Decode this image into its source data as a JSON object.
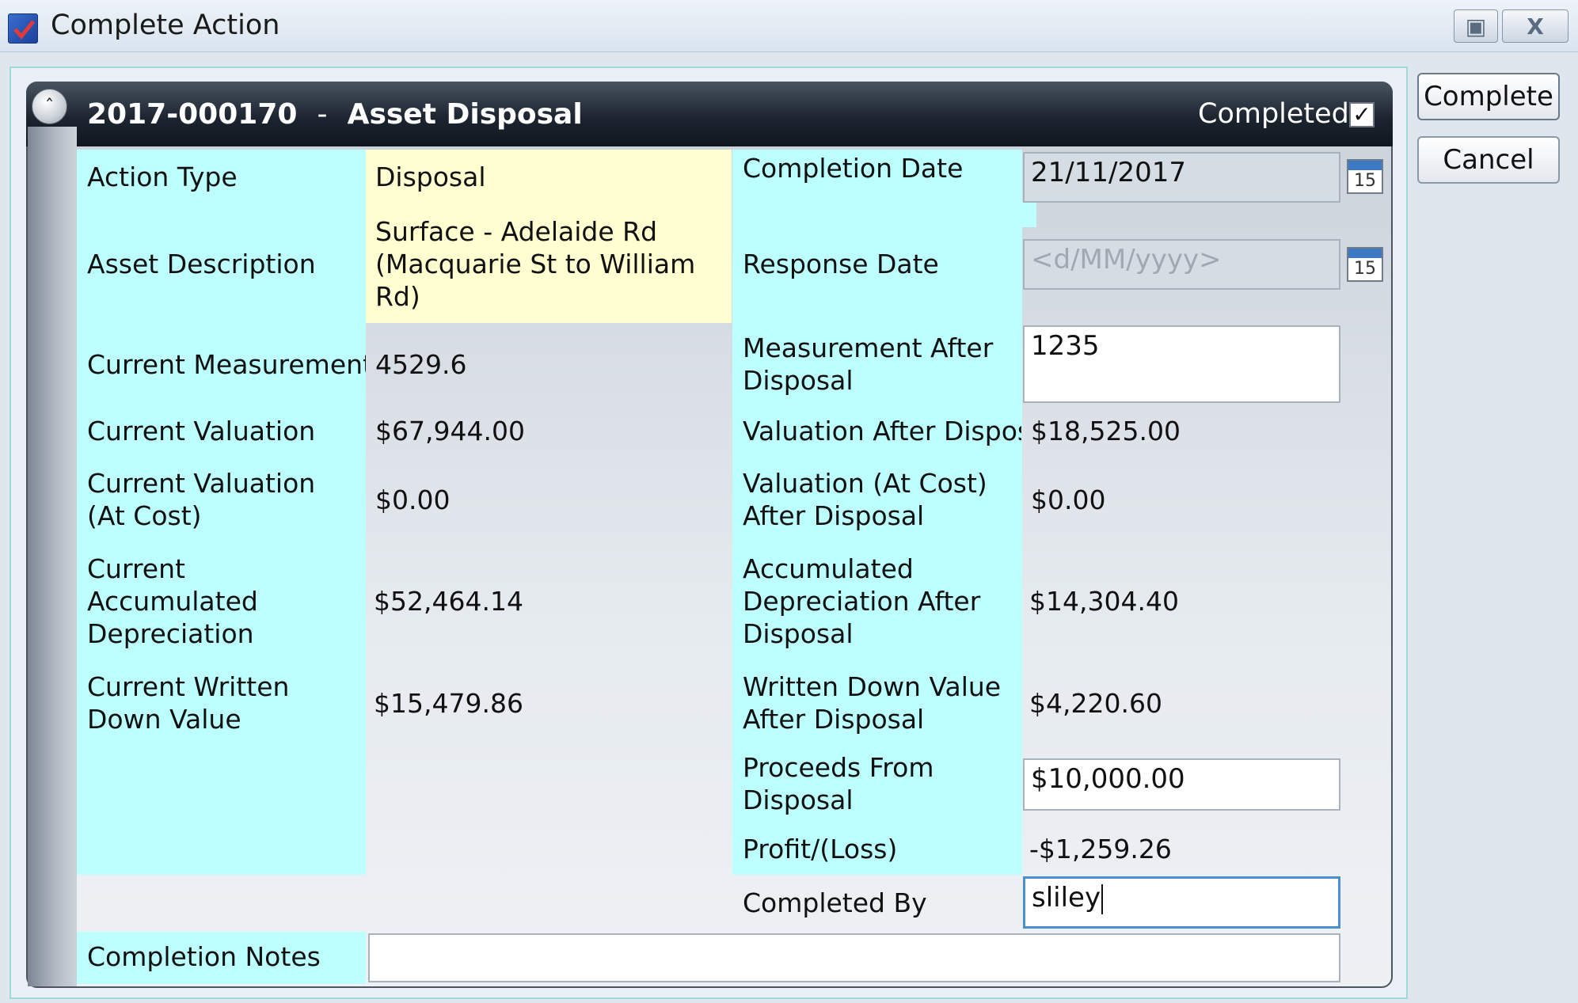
{
  "window": {
    "title": "Complete Action",
    "icon": "checkbox-app-icon"
  },
  "header": {
    "action_id": "2017-000170",
    "separator": "-",
    "action_title": "Asset Disposal",
    "completed_label": "Completed",
    "completed_checked": true
  },
  "buttons": {
    "complete": "Complete",
    "cancel": "Cancel"
  },
  "left": {
    "action_type": {
      "label": "Action Type",
      "value": "Disposal"
    },
    "asset_description": {
      "label": "Asset Description",
      "value": "Surface - Adelaide Rd (Macquarie St to William Rd)"
    },
    "current_measurement": {
      "label": "Current Measurement",
      "value": "4529.6"
    },
    "current_valuation": {
      "label": "Current Valuation",
      "value": "$67,944.00"
    },
    "current_valuation_cost": {
      "label": "Current Valuation (At Cost)",
      "value": "$0.00"
    },
    "current_accum_dep": {
      "label": "Current Accumulated Depreciation",
      "value": "$52,464.14"
    },
    "current_wdv": {
      "label": "Current Written Down Value",
      "value": "$15,479.86"
    }
  },
  "right": {
    "completion_date": {
      "label": "Completion Date",
      "value": "21/11/2017",
      "calendar_day": "15"
    },
    "response_date": {
      "label": "Response Date",
      "placeholder": "<d/MM/yyyy>",
      "calendar_day": "15"
    },
    "measurement_after": {
      "label": "Measurement After Disposal",
      "value": "1235"
    },
    "valuation_after": {
      "label": "Valuation After Disposal",
      "value": "$18,525.00"
    },
    "valuation_cost_after": {
      "label": "Valuation (At Cost) After Disposal",
      "value": "$0.00"
    },
    "accum_dep_after": {
      "label": "Accumulated Depreciation After Disposal",
      "value": "$14,304.40"
    },
    "wdv_after": {
      "label": "Written Down Value After Disposal",
      "value": "$4,220.60"
    },
    "proceeds": {
      "label": "Proceeds From Disposal",
      "value": "$10,000.00"
    },
    "profit_loss": {
      "label": "Profit/(Loss)",
      "value": "-$1,259.26"
    },
    "completed_by": {
      "label": "Completed By",
      "value": "sliley"
    }
  },
  "notes": {
    "label": "Completion Notes",
    "value": ""
  }
}
